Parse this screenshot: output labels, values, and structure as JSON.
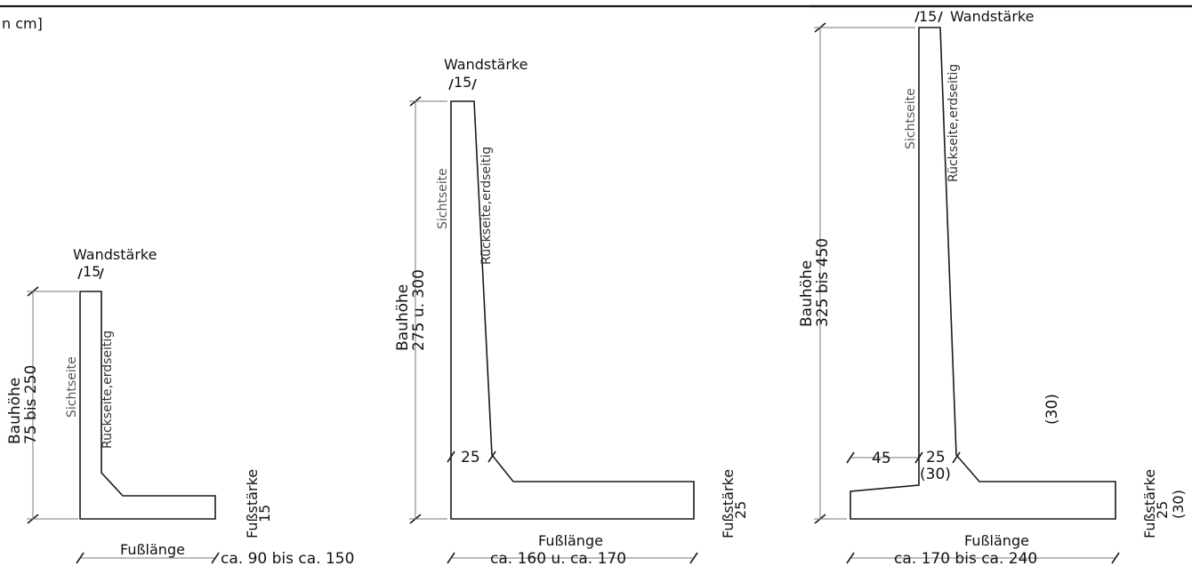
{
  "unit_note": "n cm]",
  "labels": {
    "wall_thickness": "Wandstärke",
    "build_height": "Bauhöhe",
    "foot_thickness": "Fußstärke",
    "foot_length": "Fußlänge",
    "visible_side": "Sichtseite",
    "back_side": "Rückseite,erdseitig"
  },
  "small": {
    "wall": "15",
    "height_range": "75 bis 250",
    "foot": "15",
    "length_range": "ca. 90 bis ca. 150"
  },
  "medium": {
    "wall": "15",
    "height_range": "275 u. 300",
    "base_wall": "25",
    "foot": "25",
    "length_range": "ca. 160 u. ca. 170"
  },
  "large": {
    "wall": "15",
    "height_range": "325 bis 450",
    "toe": "45",
    "base_wall": "25",
    "base_wall_alt": "(30)",
    "side_note": "(30)",
    "foot": "25",
    "foot_alt": "(30)",
    "length_range": "ca. 170 bis ca. 240"
  }
}
